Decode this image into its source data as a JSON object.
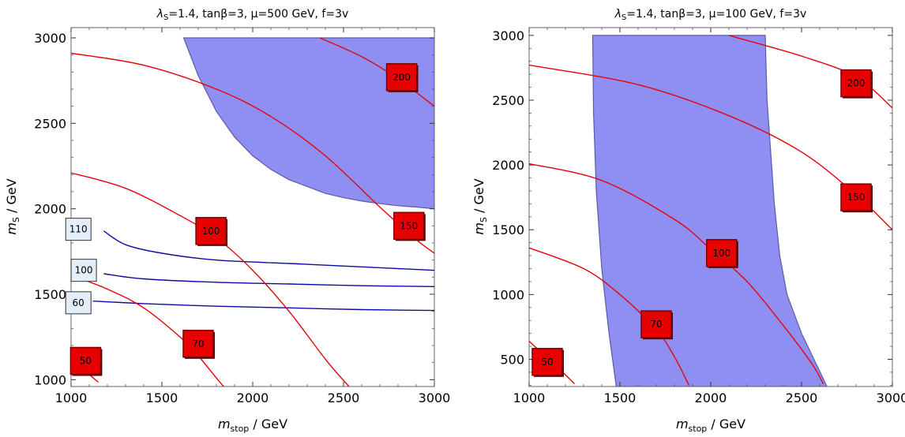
{
  "chart_data": [
    {
      "type": "contour",
      "title_parts": [
        "λ",
        "S",
        "=1.4, tanβ=3, μ=500 GeV, f=3v"
      ],
      "xlabel_parts": [
        "m",
        "stop",
        " / GeV"
      ],
      "ylabel_parts": [
        "m",
        "S",
        " / GeV"
      ],
      "xlim": [
        1000,
        3000
      ],
      "ylim": [
        960,
        3060
      ],
      "xticks": [
        1000,
        1500,
        2000,
        2500,
        3000
      ],
      "yticks": [
        1000,
        1500,
        2000,
        2500,
        3000
      ],
      "colors": {
        "red_contour": "#e8000b",
        "blue_contour": "#0a0aa8",
        "region_fill": "#7b7bf0",
        "region_edge": "#5a5aa8",
        "red_label_bg": "#e80000",
        "blue_label_bg": "#e3eefa"
      },
      "shaded_region": [
        [
          1620,
          3000
        ],
        [
          1700,
          2780
        ],
        [
          1800,
          2570
        ],
        [
          1900,
          2420
        ],
        [
          2000,
          2310
        ],
        [
          2100,
          2230
        ],
        [
          2200,
          2170
        ],
        [
          2300,
          2130
        ],
        [
          2400,
          2090
        ],
        [
          2500,
          2065
        ],
        [
          2600,
          2045
        ],
        [
          2700,
          2030
        ],
        [
          2800,
          2018
        ],
        [
          2900,
          2010
        ],
        [
          3000,
          2000
        ],
        [
          3000,
          3000
        ]
      ],
      "red_contours": [
        {
          "label": "50",
          "label_at": [
            1080,
            1110
          ],
          "points": [
            [
              1000,
              1120
            ],
            [
              1050,
              1070
            ],
            [
              1100,
              1030
            ],
            [
              1150,
              985
            ]
          ]
        },
        {
          "label": "70",
          "label_at": [
            1700,
            1210
          ],
          "points": [
            [
              1000,
              1610
            ],
            [
              1200,
              1530
            ],
            [
              1400,
              1420
            ],
            [
              1600,
              1250
            ],
            [
              1700,
              1140
            ],
            [
              1800,
              1010
            ],
            [
              1840,
              960
            ]
          ]
        },
        {
          "label": "100",
          "label_at": [
            1770,
            1870
          ],
          "points": [
            [
              1000,
              2210
            ],
            [
              1300,
              2120
            ],
            [
              1600,
              1960
            ],
            [
              1800,
              1830
            ],
            [
              2000,
              1640
            ],
            [
              2200,
              1400
            ],
            [
              2400,
              1120
            ],
            [
              2530,
              960
            ]
          ]
        },
        {
          "label": "150",
          "label_at": [
            2860,
            1900
          ],
          "points": [
            [
              1000,
              2910
            ],
            [
              1400,
              2840
            ],
            [
              1800,
              2700
            ],
            [
              2100,
              2540
            ],
            [
              2400,
              2310
            ],
            [
              2700,
              2010
            ],
            [
              2900,
              1820
            ],
            [
              3000,
              1740
            ]
          ]
        },
        {
          "label": "200",
          "label_at": [
            2820,
            2770
          ],
          "points": [
            [
              2370,
              3000
            ],
            [
              2600,
              2890
            ],
            [
              2800,
              2760
            ],
            [
              3000,
              2600
            ]
          ]
        }
      ],
      "blue_contours": [
        {
          "label": "110",
          "label_at": [
            1040,
            1880
          ],
          "points": [
            [
              1180,
              1870
            ],
            [
              1300,
              1790
            ],
            [
              1500,
              1740
            ],
            [
              1800,
              1700
            ],
            [
              2200,
              1680
            ],
            [
              2600,
              1660
            ],
            [
              3000,
              1640
            ]
          ]
        },
        {
          "label": "100",
          "label_at": [
            1070,
            1640
          ],
          "points": [
            [
              1180,
              1620
            ],
            [
              1400,
              1590
            ],
            [
              1800,
              1570
            ],
            [
              2200,
              1560
            ],
            [
              2600,
              1550
            ],
            [
              3000,
              1545
            ]
          ]
        },
        {
          "label": "60",
          "label_at": [
            1040,
            1450
          ],
          "points": [
            [
              1120,
              1460
            ],
            [
              1400,
              1445
            ],
            [
              1800,
              1430
            ],
            [
              2200,
              1420
            ],
            [
              2600,
              1410
            ],
            [
              3000,
              1405
            ]
          ]
        }
      ]
    },
    {
      "type": "contour",
      "title_parts": [
        "λ",
        "S",
        "=1.4, tanβ=3, μ=100 GeV, f=3v"
      ],
      "xlabel_parts": [
        "m",
        "stop",
        " / GeV"
      ],
      "ylabel_parts": [
        "m",
        "S",
        " / GeV"
      ],
      "xlim": [
        1000,
        3000
      ],
      "ylim": [
        290,
        3060
      ],
      "xticks": [
        1000,
        1500,
        2000,
        2500,
        3000
      ],
      "yticks": [
        500,
        1000,
        1500,
        2000,
        2500,
        3000
      ],
      "colors": {
        "red_contour": "#e8000b",
        "region_fill": "#7b7bf0",
        "region_edge": "#5a5aa8",
        "red_label_bg": "#e80000"
      },
      "shaded_region": [
        [
          1350,
          3000
        ],
        [
          2300,
          3000
        ],
        [
          2310,
          2500
        ],
        [
          2330,
          2100
        ],
        [
          2350,
          1700
        ],
        [
          2380,
          1300
        ],
        [
          2420,
          1000
        ],
        [
          2500,
          700
        ],
        [
          2640,
          290
        ],
        [
          1480,
          290
        ],
        [
          1440,
          700
        ],
        [
          1400,
          1200
        ],
        [
          1370,
          1800
        ],
        [
          1355,
          2400
        ]
      ],
      "red_contours": [
        {
          "label": "50",
          "label_at": [
            1100,
            480
          ],
          "points": [
            [
              1000,
              640
            ],
            [
              1100,
              510
            ],
            [
              1200,
              380
            ],
            [
              1250,
              310
            ]
          ]
        },
        {
          "label": "70",
          "label_at": [
            1700,
            770
          ],
          "points": [
            [
              1000,
              1360
            ],
            [
              1300,
              1200
            ],
            [
              1500,
              1000
            ],
            [
              1700,
              730
            ],
            [
              1800,
              520
            ],
            [
              1880,
              300
            ]
          ]
        },
        {
          "label": "100",
          "label_at": [
            2060,
            1320
          ],
          "points": [
            [
              1000,
              2010
            ],
            [
              1400,
              1880
            ],
            [
              1800,
              1580
            ],
            [
              2000,
              1350
            ],
            [
              2200,
              1100
            ],
            [
              2400,
              760
            ],
            [
              2560,
              460
            ],
            [
              2620,
              310
            ]
          ]
        },
        {
          "label": "150",
          "label_at": [
            2800,
            1750
          ],
          "points": [
            [
              1000,
              2770
            ],
            [
              1600,
              2620
            ],
            [
              2100,
              2380
            ],
            [
              2500,
              2100
            ],
            [
              2800,
              1770
            ],
            [
              3000,
              1500
            ]
          ]
        },
        {
          "label": "200",
          "label_at": [
            2800,
            2630
          ],
          "points": [
            [
              2100,
              3000
            ],
            [
              2500,
              2840
            ],
            [
              2800,
              2680
            ],
            [
              3000,
              2440
            ]
          ]
        }
      ]
    }
  ]
}
